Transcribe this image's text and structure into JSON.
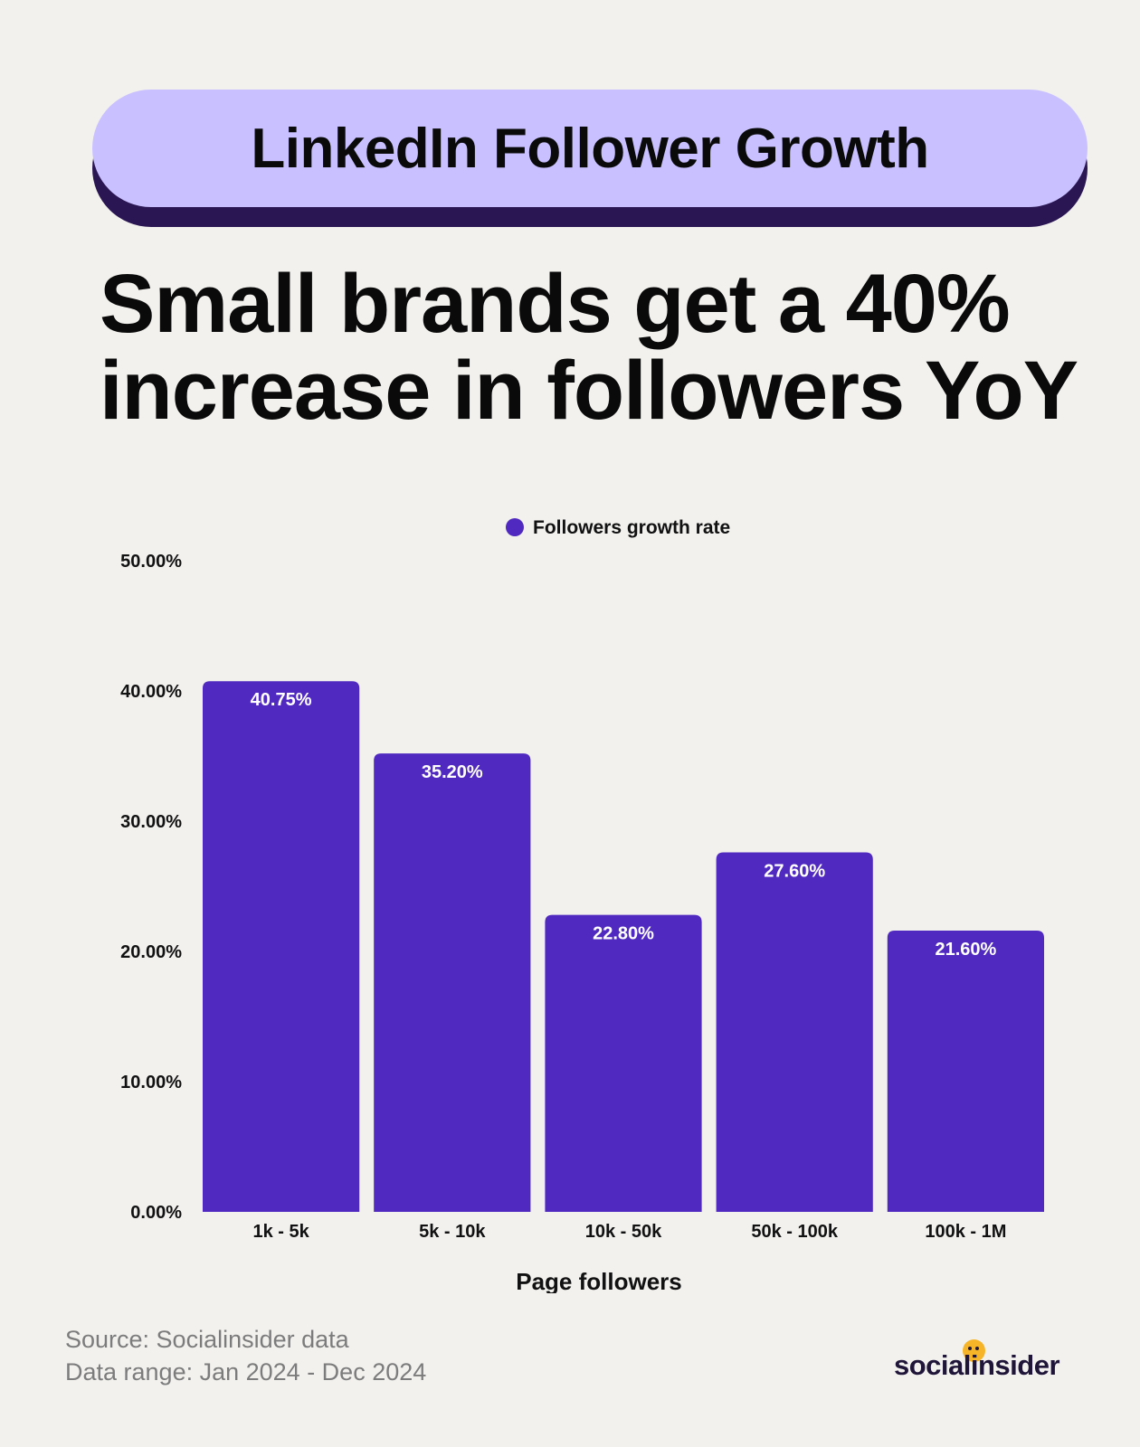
{
  "banner": {
    "title": "LinkedIn Follower Growth"
  },
  "headline": {
    "line1": "Small brands get a 40%",
    "line2": "increase in followers YoY"
  },
  "chart_data": {
    "type": "bar",
    "categories": [
      "1k - 5k",
      "5k - 10k",
      "10k - 50k",
      "50k - 100k",
      "100k - 1M"
    ],
    "series": [
      {
        "name": "Followers growth rate",
        "values": [
          40.75,
          35.2,
          22.8,
          27.6,
          21.6
        ],
        "color": "#502ac0"
      }
    ],
    "data_labels": [
      "40.75%",
      "35.20%",
      "22.80%",
      "27.60%",
      "21.60%"
    ],
    "y_ticks": [
      "0.00%",
      "10.00%",
      "20.00%",
      "30.00%",
      "40.00%",
      "50.00%"
    ],
    "ylim": [
      0,
      50
    ],
    "xlabel": "Page followers",
    "ylabel": "",
    "title": "",
    "legend_position": "top-center",
    "grid": false
  },
  "footer": {
    "source": "Source: Socialinsider data",
    "range": "Data range: Jan 2024 - Dec 2024"
  },
  "logo": {
    "text": "socialinsider"
  }
}
